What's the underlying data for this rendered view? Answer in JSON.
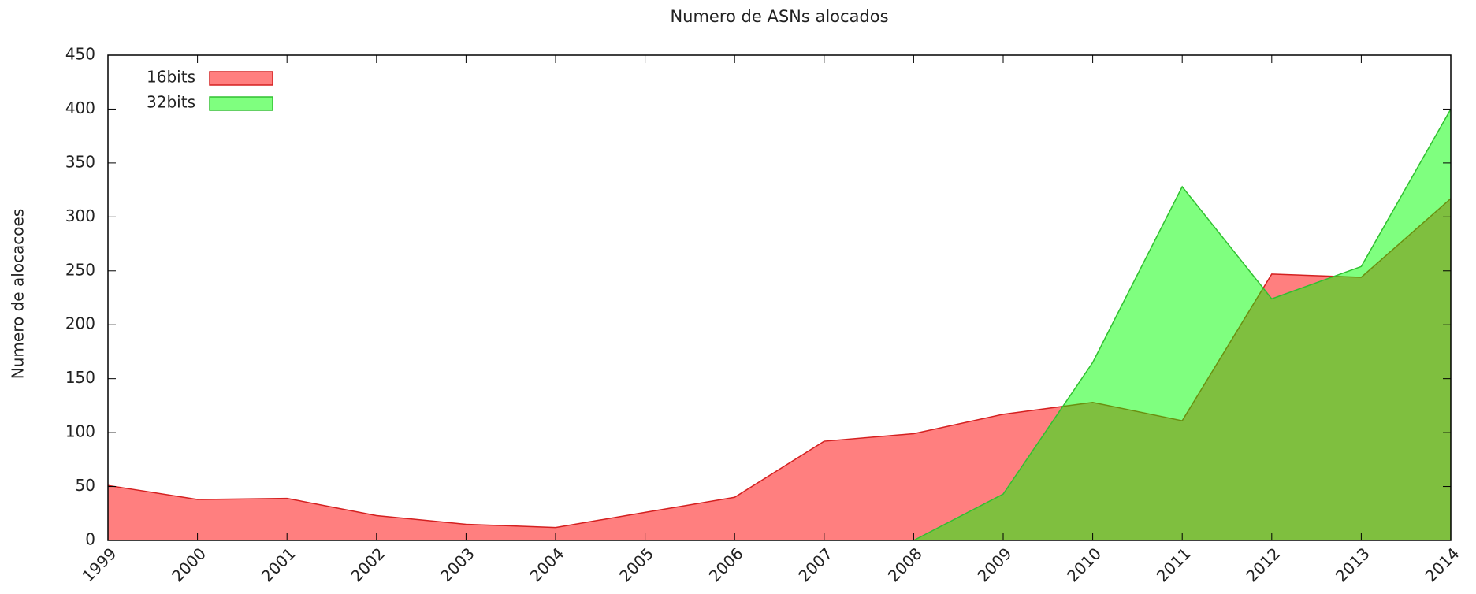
{
  "chart_data": {
    "type": "area",
    "title": "Numero de ASNs alocados",
    "y_label": "Numero de alocacoes",
    "categories": [
      "1999",
      "2000",
      "2001",
      "2002",
      "2003",
      "2004",
      "2005",
      "2006",
      "2007",
      "2008",
      "2009",
      "2010",
      "2011",
      "2012",
      "2013",
      "2014"
    ],
    "series": [
      {
        "name": "16bits",
        "color": "#ff7f7f",
        "stroke": "#d42020",
        "values": [
          51,
          38,
          39,
          23,
          15,
          12,
          26,
          40,
          92,
          99,
          117,
          128,
          111,
          247,
          244,
          317
        ]
      },
      {
        "name": "32bits",
        "color": "#00ff00",
        "stroke": "#30c030",
        "values": [
          null,
          null,
          null,
          null,
          null,
          null,
          null,
          null,
          null,
          0,
          43,
          165,
          328,
          224,
          254,
          400
        ]
      }
    ],
    "ylim": [
      0,
      450
    ],
    "yticks": [
      0,
      50,
      100,
      150,
      200,
      250,
      300,
      350,
      400,
      450
    ],
    "legend": "upper left"
  }
}
